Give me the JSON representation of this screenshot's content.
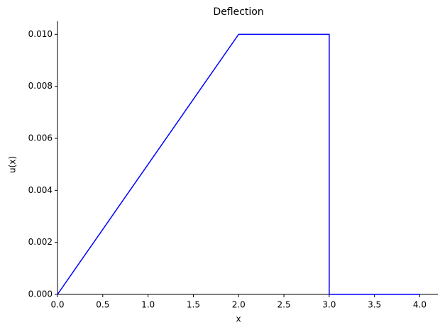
{
  "chart_data": {
    "type": "line",
    "title": "Deflection",
    "x_label": "x",
    "y_label": "u(x)",
    "x": [
      0,
      2,
      3,
      3,
      4
    ],
    "series": [
      {
        "color": "#0000ff",
        "values": [
          0,
          0.01,
          0.01,
          0,
          0
        ]
      }
    ],
    "xlim": [
      0,
      4.2
    ],
    "ylim": [
      0,
      0.0105
    ],
    "xticks": [
      {
        "value": 0,
        "label": "0.0"
      },
      0.5,
      {
        "value": 1,
        "label": "1.0"
      },
      1.5,
      {
        "value": 2,
        "label": "2.0"
      },
      2.5,
      {
        "value": 3,
        "label": "3.0"
      },
      3.5,
      {
        "value": 4,
        "label": "4.0"
      }
    ],
    "yticks": [
      {
        "value": 0,
        "label": "0.000"
      },
      {
        "value": 0.002,
        "label": "0.002"
      },
      {
        "value": 0.004,
        "label": "0.004"
      },
      {
        "value": 0.006,
        "label": "0.006"
      },
      {
        "value": 0.008,
        "label": "0.008"
      },
      {
        "value": 0.01,
        "label": "0.010"
      }
    ],
    "grid": false
  }
}
